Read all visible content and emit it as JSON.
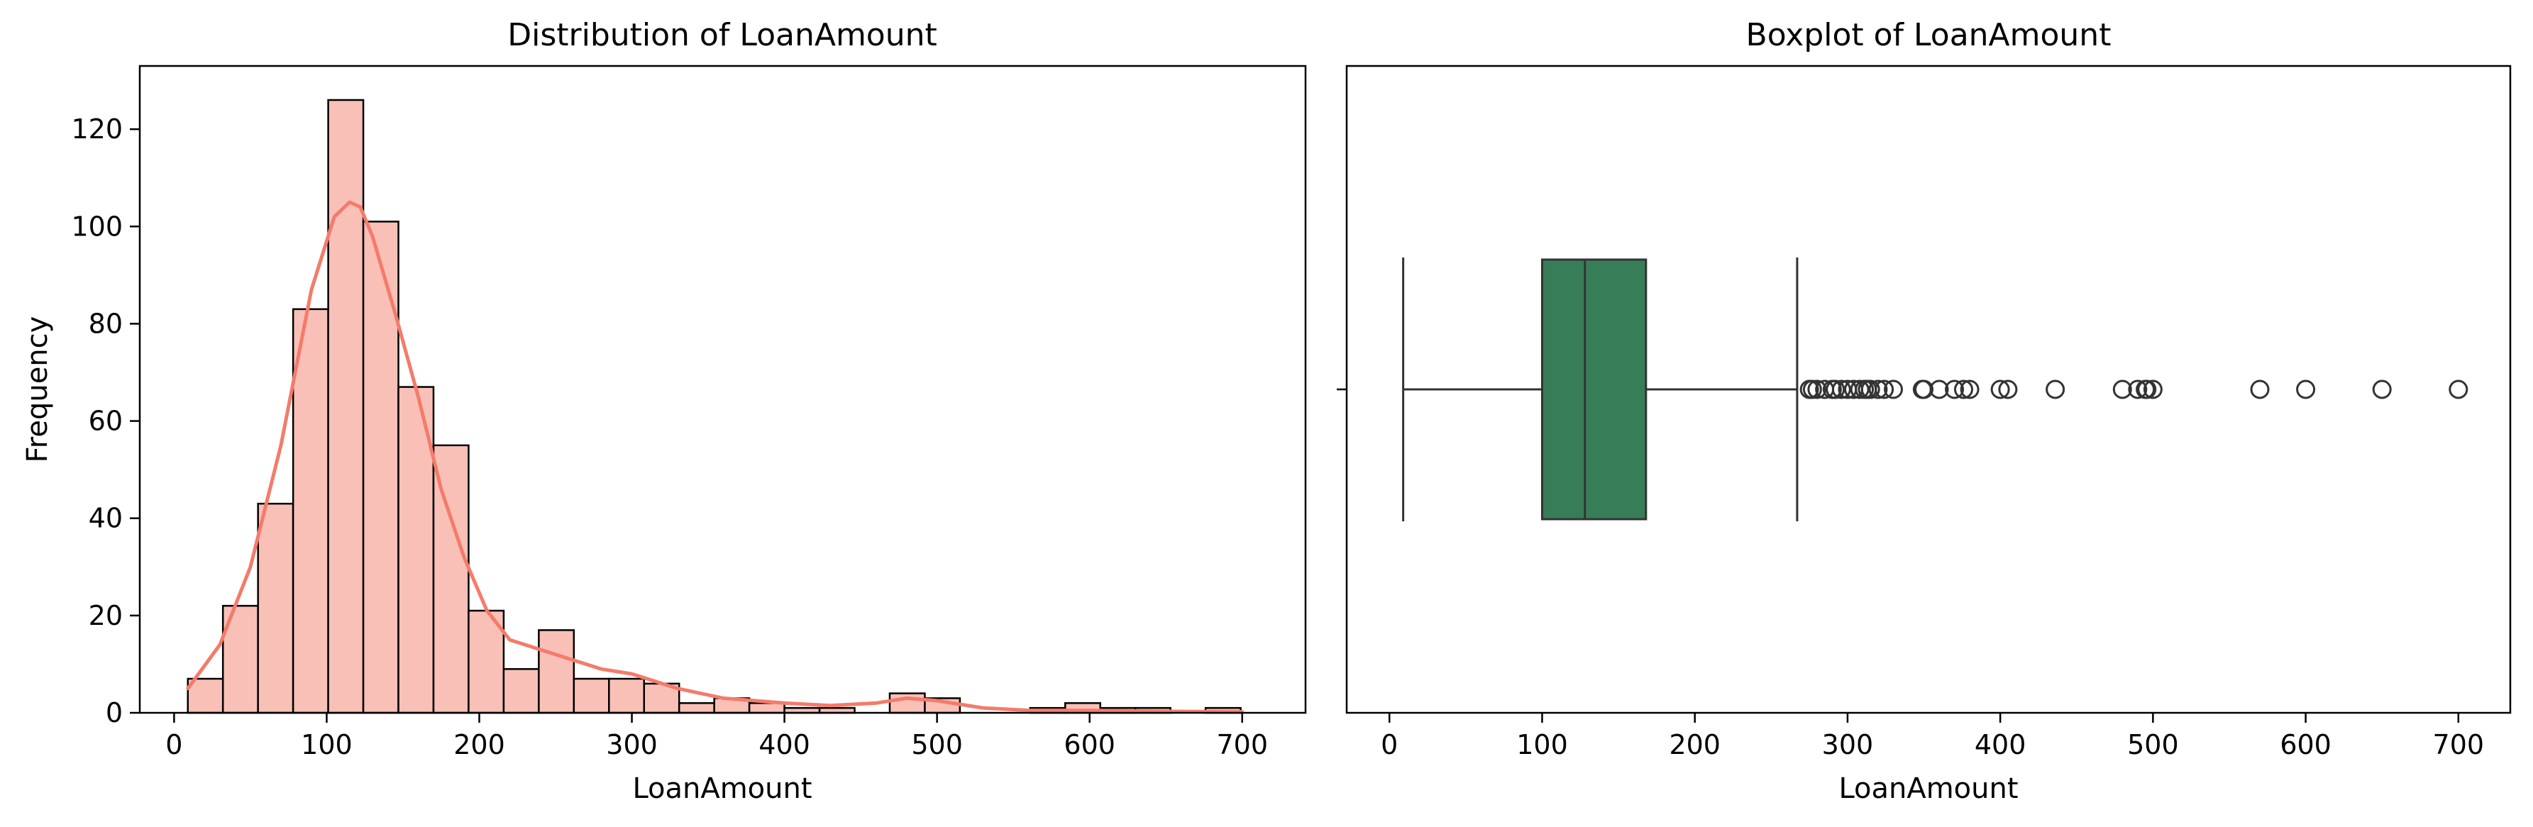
{
  "chart_data": [
    {
      "type": "bar",
      "subtype": "histogram-with-kde",
      "title": "Distribution of LoanAmount",
      "xlabel": "LoanAmount",
      "ylabel": "Frequency",
      "xlim": [
        -22.5,
        741.5
      ],
      "ylim": [
        0,
        133
      ],
      "xticks": [
        0,
        100,
        200,
        300,
        400,
        500,
        600,
        700
      ],
      "yticks": [
        0,
        20,
        40,
        60,
        80,
        100,
        120
      ],
      "bin_start": 9,
      "bin_width": 23,
      "bin_counts": [
        7,
        22,
        43,
        83,
        126,
        101,
        67,
        55,
        21,
        9,
        17,
        7,
        7,
        6,
        2,
        3,
        2,
        1,
        1,
        0,
        4,
        3,
        0,
        0,
        1,
        2,
        1,
        1,
        0,
        1
      ],
      "kde": {
        "x": [
          9,
          30,
          50,
          70,
          90,
          105,
          115,
          122,
          130,
          145,
          160,
          175,
          190,
          205,
          220,
          240,
          260,
          280,
          300,
          330,
          360,
          400,
          430,
          460,
          480,
          500,
          530,
          560,
          600,
          650,
          700
        ],
        "y": [
          5,
          14,
          30,
          55,
          87,
          102,
          105,
          104,
          98,
          82,
          65,
          46,
          32,
          21,
          15,
          13,
          11,
          9,
          8,
          5,
          3,
          2,
          1.5,
          2,
          3,
          2.5,
          1,
          0.5,
          0.5,
          0.3,
          0.2
        ]
      },
      "colors": {
        "bar_fill": "#f9c0b7",
        "bar_edge": "#000000",
        "kde_line": "#f47b6b"
      },
      "grid": false,
      "legend": "none"
    },
    {
      "type": "boxplot",
      "title": "Boxplot of LoanAmount",
      "xlabel": "LoanAmount",
      "ylabel": "",
      "xlim": [
        -28,
        734
      ],
      "xticks": [
        0,
        100,
        200,
        300,
        400,
        500,
        600,
        700
      ],
      "box": {
        "whisker_low": 9,
        "q1": 100,
        "median": 128,
        "q3": 168,
        "whisker_high": 267
      },
      "outliers": [
        275,
        277,
        280,
        285,
        290,
        292,
        296,
        300,
        304,
        308,
        311,
        313,
        315,
        320,
        324,
        330,
        349,
        350,
        360,
        370,
        376,
        380,
        400,
        405,
        436,
        480,
        490,
        495,
        496,
        500,
        570,
        600,
        650,
        700
      ],
      "colors": {
        "box_fill": "#377e58",
        "box_edge": "#333333"
      },
      "grid": false,
      "legend": "none"
    }
  ]
}
